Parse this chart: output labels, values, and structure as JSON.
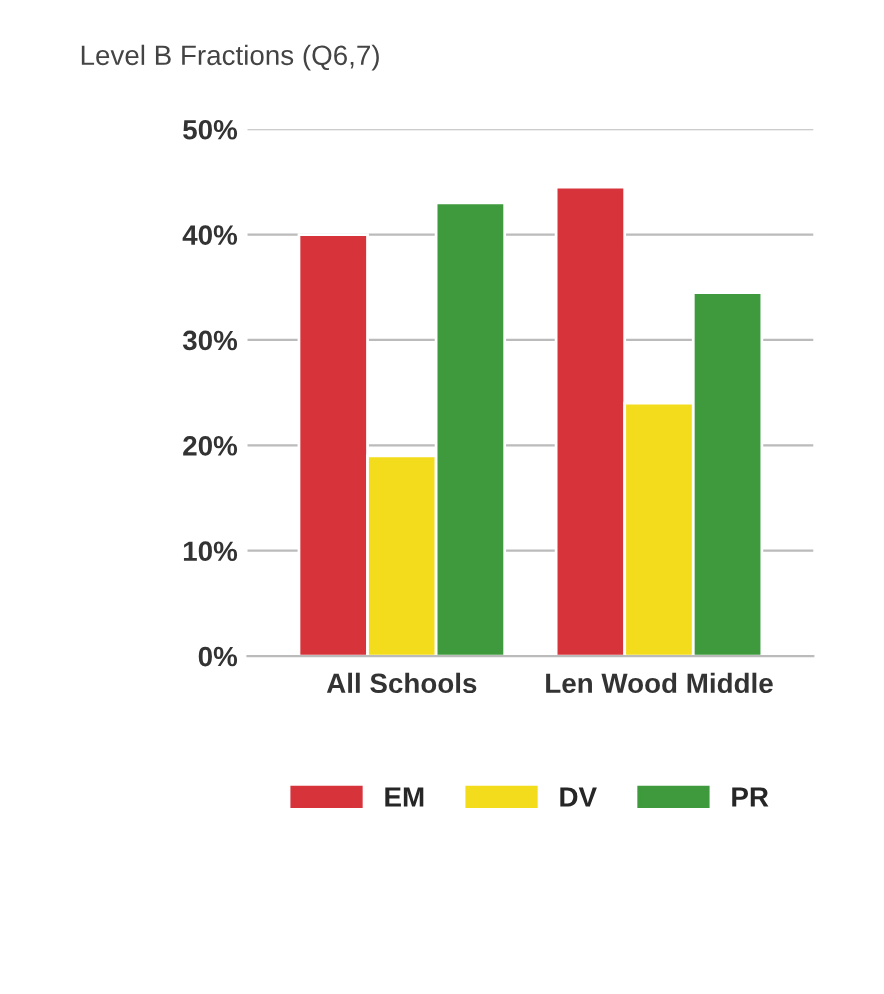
{
  "chart_data": {
    "type": "bar",
    "title": "Level B Fractions (Q6,7)",
    "categories": [
      "All Schools",
      "Len Wood Middle"
    ],
    "series": [
      {
        "name": "EM",
        "color": "#d7333b",
        "values": [
          40,
          44.5
        ]
      },
      {
        "name": "DV",
        "color": "#f2dc1c",
        "values": [
          19,
          24
        ]
      },
      {
        "name": "PR",
        "color": "#3e9a3c",
        "values": [
          43,
          34.5
        ]
      }
    ],
    "ylim": [
      0,
      50
    ],
    "yticks": [
      {
        "value": 0,
        "label": "0%"
      },
      {
        "value": 10,
        "label": "10%"
      },
      {
        "value": 20,
        "label": "20%"
      },
      {
        "value": 30,
        "label": "30%"
      },
      {
        "value": 40,
        "label": "40%"
      },
      {
        "value": 50,
        "label": "50%"
      }
    ],
    "grid": "y",
    "legend": "bottom"
  }
}
